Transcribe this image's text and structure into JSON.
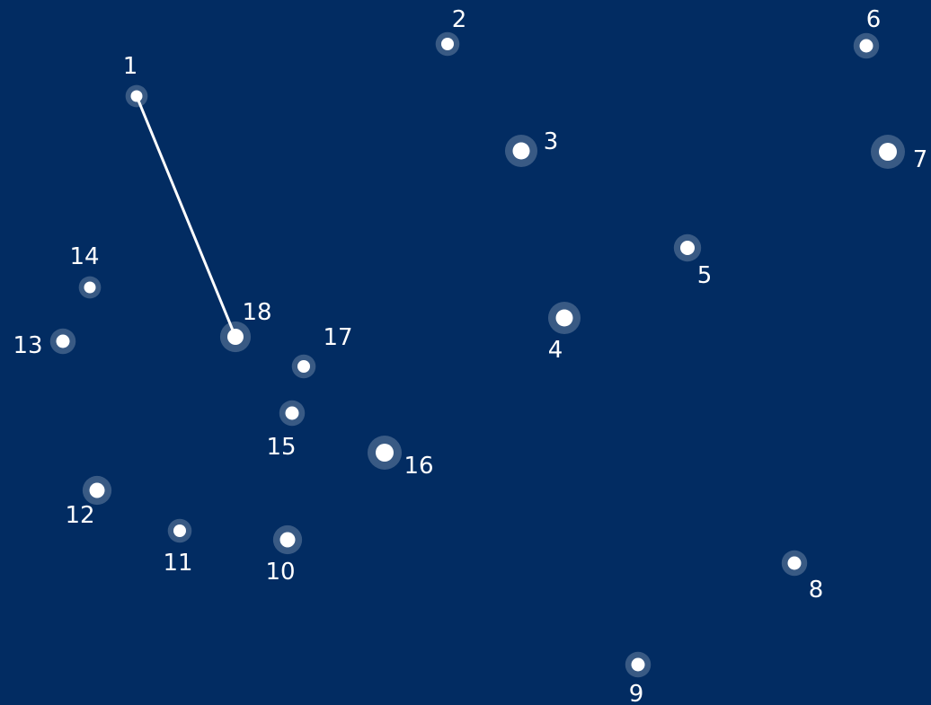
{
  "game": {
    "kind": "connect-the-dots",
    "background_color": "#022c62",
    "dot_color": "#ffffff",
    "line_color": "#ffffff"
  },
  "dots": [
    {
      "id": 1,
      "label": "1"
    },
    {
      "id": 2,
      "label": "2"
    },
    {
      "id": 3,
      "label": "3"
    },
    {
      "id": 4,
      "label": "4"
    },
    {
      "id": 5,
      "label": "5"
    },
    {
      "id": 6,
      "label": "6"
    },
    {
      "id": 7,
      "label": "7"
    },
    {
      "id": 8,
      "label": "8"
    },
    {
      "id": 9,
      "label": "9"
    },
    {
      "id": 10,
      "label": "10"
    },
    {
      "id": 11,
      "label": "11"
    },
    {
      "id": 12,
      "label": "12"
    },
    {
      "id": 13,
      "label": "13"
    },
    {
      "id": 14,
      "label": "14"
    },
    {
      "id": 15,
      "label": "15"
    },
    {
      "id": 16,
      "label": "16"
    },
    {
      "id": 17,
      "label": "17"
    },
    {
      "id": 18,
      "label": "18"
    }
  ],
  "connections": [
    {
      "from": 1,
      "to": 18
    }
  ]
}
